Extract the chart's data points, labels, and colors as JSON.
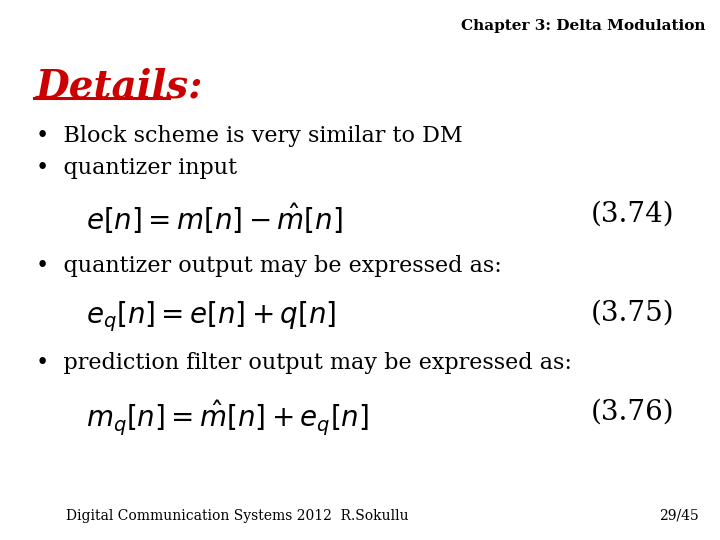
{
  "title": "Chapter 3: Delta Modulation",
  "title_fontsize": 11,
  "title_color": "#000000",
  "background_color": "#ffffff",
  "heading": "Details:",
  "heading_color": "#cc0000",
  "heading_fontsize": 28,
  "footer_left": "Digital Communication Systems 2012  R.Sokullu",
  "footer_right": "29/45",
  "footer_fontsize": 10,
  "bullet1": "Block scheme is very similar to DM",
  "bullet2": "quantizer input",
  "bullet3": "quantizer output may be expressed as:",
  "bullet4": "prediction filter output may be expressed as:",
  "eq1_label": "(3.74)",
  "eq2_label": "(3.75)",
  "eq3_label": "(3.76)",
  "bullet_fontsize": 16,
  "eq_fontsize": 20
}
